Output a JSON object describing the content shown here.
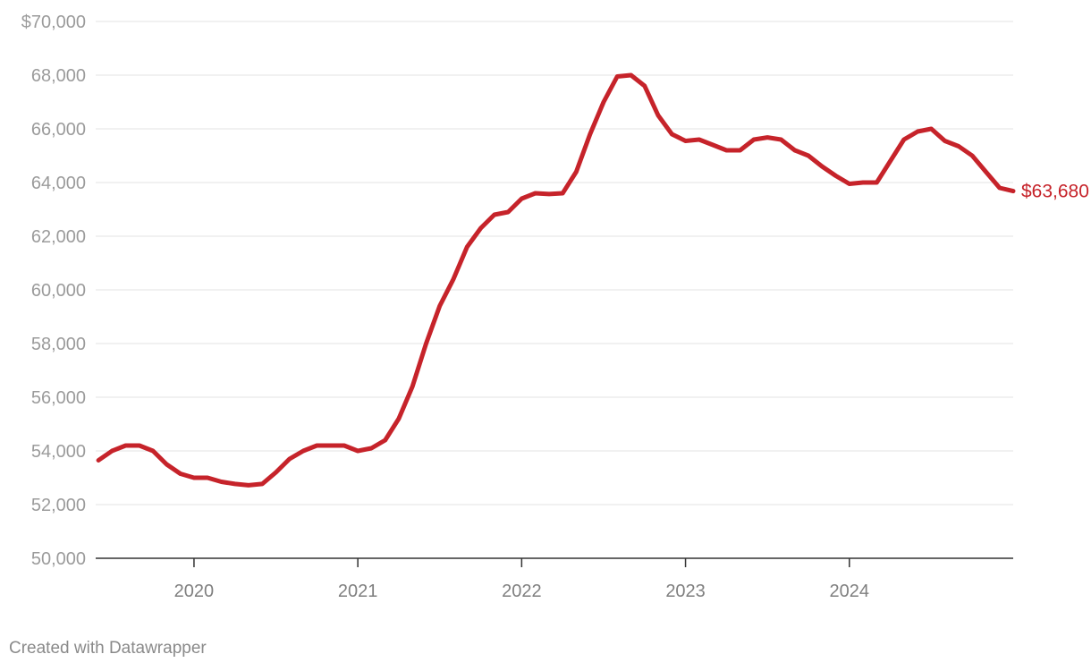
{
  "chart_data": {
    "type": "line",
    "title": "",
    "xlabel": "",
    "ylabel": "",
    "ylim": [
      50000,
      70000
    ],
    "xlim": [
      2019.4,
      2025.0
    ],
    "y_ticks": [
      {
        "value": 70000,
        "label": "$70,000"
      },
      {
        "value": 68000,
        "label": "68,000"
      },
      {
        "value": 66000,
        "label": "66,000"
      },
      {
        "value": 64000,
        "label": "64,000"
      },
      {
        "value": 62000,
        "label": "62,000"
      },
      {
        "value": 60000,
        "label": "60,000"
      },
      {
        "value": 58000,
        "label": "58,000"
      },
      {
        "value": 56000,
        "label": "56,000"
      },
      {
        "value": 54000,
        "label": "54,000"
      },
      {
        "value": 52000,
        "label": "52,000"
      },
      {
        "value": 50000,
        "label": "50,000"
      }
    ],
    "x_ticks": [
      {
        "value": 2020,
        "label": "2020"
      },
      {
        "value": 2021,
        "label": "2021"
      },
      {
        "value": 2022,
        "label": "2022"
      },
      {
        "value": 2023,
        "label": "2023"
      },
      {
        "value": 2024,
        "label": "2024"
      }
    ],
    "series": [
      {
        "name": "Price",
        "color": "#c6232a",
        "end_label": "$63,680",
        "x": [
          2019.417,
          2019.5,
          2019.583,
          2019.667,
          2019.75,
          2019.833,
          2019.917,
          2020.0,
          2020.083,
          2020.167,
          2020.25,
          2020.333,
          2020.417,
          2020.5,
          2020.583,
          2020.667,
          2020.75,
          2020.833,
          2020.917,
          2021.0,
          2021.083,
          2021.167,
          2021.25,
          2021.333,
          2021.417,
          2021.5,
          2021.583,
          2021.667,
          2021.75,
          2021.833,
          2021.917,
          2022.0,
          2022.083,
          2022.167,
          2022.25,
          2022.333,
          2022.417,
          2022.5,
          2022.583,
          2022.667,
          2022.75,
          2022.833,
          2022.917,
          2023.0,
          2023.083,
          2023.167,
          2023.25,
          2023.333,
          2023.417,
          2023.5,
          2023.583,
          2023.667,
          2023.75,
          2023.833,
          2023.917,
          2024.0,
          2024.083,
          2024.167,
          2024.25,
          2024.333,
          2024.417,
          2024.5,
          2024.583,
          2024.667,
          2024.75,
          2024.833,
          2024.917,
          2025.0
        ],
        "values": [
          53650,
          54000,
          54200,
          54200,
          54000,
          53500,
          53150,
          53000,
          53000,
          52850,
          52770,
          52720,
          52770,
          53200,
          53700,
          54000,
          54200,
          54200,
          54200,
          54000,
          54100,
          54400,
          55200,
          56400,
          58000,
          59400,
          60400,
          61600,
          62300,
          62800,
          62900,
          63400,
          63600,
          63570,
          63600,
          64400,
          65800,
          67000,
          67950,
          68000,
          67600,
          66500,
          65800,
          65550,
          65600,
          65400,
          65200,
          65200,
          65600,
          65680,
          65600,
          65200,
          65000,
          64600,
          64250,
          63950,
          64000,
          64000,
          64800,
          65600,
          65900,
          66000,
          65550,
          65350,
          65000,
          64400,
          63800,
          63680
        ]
      }
    ]
  },
  "footer": {
    "credit": "Created with Datawrapper"
  }
}
